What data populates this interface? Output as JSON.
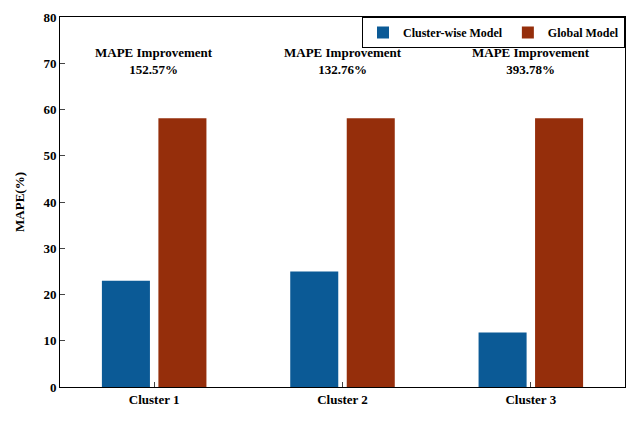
{
  "chart_data": {
    "type": "bar",
    "y_label": "MAPE(%)",
    "categories": [
      "Cluster 1",
      "Cluster 2",
      "Cluster 3"
    ],
    "series": [
      {
        "name": "Cluster-wise Model",
        "color": "#0b5a96",
        "values": [
          23,
          25,
          11.8
        ]
      },
      {
        "name": "Global Model",
        "color": "#952e0b",
        "values": [
          58.1,
          58.1,
          58.1
        ]
      }
    ],
    "ylim": [
      0,
      80
    ],
    "yticks": [
      0,
      10,
      20,
      30,
      40,
      50,
      60,
      70,
      80
    ],
    "grid": false,
    "legend": "top right",
    "annotations": [
      {
        "category": "Cluster 1",
        "text": [
          "MAPE Improvement",
          "152.57%"
        ]
      },
      {
        "category": "Cluster 2",
        "text": [
          "MAPE Improvement",
          "132.76%"
        ]
      },
      {
        "category": "Cluster 3",
        "text": [
          "MAPE Improvement",
          "393.78%"
        ]
      }
    ]
  }
}
